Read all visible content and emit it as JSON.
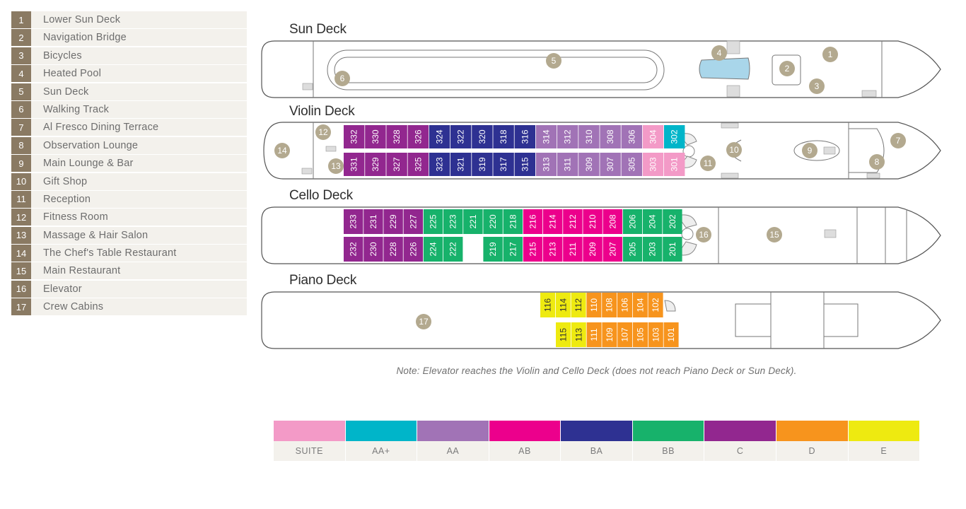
{
  "legend": [
    {
      "num": "1",
      "label": "Lower Sun Deck"
    },
    {
      "num": "2",
      "label": "Navigation Bridge"
    },
    {
      "num": "3",
      "label": "Bicycles"
    },
    {
      "num": "4",
      "label": "Heated Pool"
    },
    {
      "num": "5",
      "label": "Sun Deck"
    },
    {
      "num": "6",
      "label": "Walking Track"
    },
    {
      "num": "7",
      "label": "Al Fresco Dining Terrace"
    },
    {
      "num": "8",
      "label": "Observation Lounge"
    },
    {
      "num": "9",
      "label": "Main Lounge & Bar"
    },
    {
      "num": "10",
      "label": "Gift Shop"
    },
    {
      "num": "11",
      "label": "Reception"
    },
    {
      "num": "12",
      "label": "Fitness Room"
    },
    {
      "num": "13",
      "label": "Massage & Hair Salon"
    },
    {
      "num": "14",
      "label": "The Chef's Table Restaurant"
    },
    {
      "num": "15",
      "label": "Main Restaurant"
    },
    {
      "num": "16",
      "label": "Elevator"
    },
    {
      "num": "17",
      "label": "Crew Cabins"
    }
  ],
  "decks": {
    "sun": {
      "title": "Sun Deck"
    },
    "violin": {
      "title": "Violin Deck",
      "top": [
        {
          "n": "332",
          "c": "C"
        },
        {
          "n": "330",
          "c": "C"
        },
        {
          "n": "328",
          "c": "C"
        },
        {
          "n": "326",
          "c": "C"
        },
        {
          "n": "324",
          "c": "BA"
        },
        {
          "n": "322",
          "c": "BA"
        },
        {
          "n": "320",
          "c": "BA"
        },
        {
          "n": "318",
          "c": "BA"
        },
        {
          "n": "316",
          "c": "BA"
        },
        {
          "n": "314",
          "c": "AA"
        },
        {
          "n": "312",
          "c": "AA"
        },
        {
          "n": "310",
          "c": "AA"
        },
        {
          "n": "308",
          "c": "AA"
        },
        {
          "n": "306",
          "c": "AA"
        },
        {
          "n": "304",
          "c": "SUITE"
        },
        {
          "n": "302",
          "c": "AA+"
        }
      ],
      "bottom": [
        {
          "n": "331",
          "c": "C"
        },
        {
          "n": "329",
          "c": "C"
        },
        {
          "n": "327",
          "c": "C"
        },
        {
          "n": "325",
          "c": "C"
        },
        {
          "n": "323",
          "c": "BA"
        },
        {
          "n": "321",
          "c": "BA"
        },
        {
          "n": "319",
          "c": "BA"
        },
        {
          "n": "317",
          "c": "BA"
        },
        {
          "n": "315",
          "c": "BA"
        },
        {
          "n": "313",
          "c": "AA"
        },
        {
          "n": "311",
          "c": "AA"
        },
        {
          "n": "309",
          "c": "AA"
        },
        {
          "n": "307",
          "c": "AA"
        },
        {
          "n": "305",
          "c": "AA"
        },
        {
          "n": "303",
          "c": "SUITE"
        },
        {
          "n": "301",
          "c": "SUITE"
        }
      ]
    },
    "cello": {
      "title": "Cello Deck",
      "top": [
        {
          "n": "233",
          "c": "C"
        },
        {
          "n": "231",
          "c": "C"
        },
        {
          "n": "229",
          "c": "C"
        },
        {
          "n": "227",
          "c": "C"
        },
        {
          "n": "225",
          "c": "BB"
        },
        {
          "n": "223",
          "c": "BB"
        },
        {
          "n": "221",
          "c": "BB"
        },
        {
          "n": "220",
          "c": "BB"
        },
        {
          "n": "218",
          "c": "BB"
        },
        {
          "n": "216",
          "c": "AB"
        },
        {
          "n": "214",
          "c": "AB"
        },
        {
          "n": "212",
          "c": "AB"
        },
        {
          "n": "210",
          "c": "AB"
        },
        {
          "n": "208",
          "c": "AB"
        },
        {
          "n": "206",
          "c": "BB"
        },
        {
          "n": "204",
          "c": "BB"
        },
        {
          "n": "202",
          "c": "BB"
        }
      ],
      "bottom": [
        {
          "n": "232",
          "c": "C"
        },
        {
          "n": "230",
          "c": "C"
        },
        {
          "n": "228",
          "c": "C"
        },
        {
          "n": "226",
          "c": "C"
        },
        {
          "n": "224",
          "c": "BB"
        },
        {
          "n": "222",
          "c": "BB"
        },
        {
          "n": "",
          "c": "GAP"
        },
        {
          "n": "219",
          "c": "BB"
        },
        {
          "n": "217",
          "c": "BB"
        },
        {
          "n": "215",
          "c": "AB"
        },
        {
          "n": "213",
          "c": "AB"
        },
        {
          "n": "211",
          "c": "AB"
        },
        {
          "n": "209",
          "c": "AB"
        },
        {
          "n": "207",
          "c": "AB"
        },
        {
          "n": "205",
          "c": "BB"
        },
        {
          "n": "203",
          "c": "BB"
        },
        {
          "n": "201",
          "c": "BB"
        }
      ]
    },
    "piano": {
      "title": "Piano Deck",
      "top": [
        {
          "n": "116",
          "c": "E"
        },
        {
          "n": "114",
          "c": "E"
        },
        {
          "n": "112",
          "c": "E"
        },
        {
          "n": "110",
          "c": "D"
        },
        {
          "n": "108",
          "c": "D"
        },
        {
          "n": "106",
          "c": "D"
        },
        {
          "n": "104",
          "c": "D"
        },
        {
          "n": "102",
          "c": "D"
        }
      ],
      "bottom": [
        {
          "n": "115",
          "c": "E"
        },
        {
          "n": "113",
          "c": "E"
        },
        {
          "n": "111",
          "c": "D"
        },
        {
          "n": "109",
          "c": "D"
        },
        {
          "n": "107",
          "c": "D"
        },
        {
          "n": "105",
          "c": "D"
        },
        {
          "n": "103",
          "c": "D"
        },
        {
          "n": "101",
          "c": "D"
        }
      ]
    }
  },
  "markers": {
    "sun": [
      "1",
      "2",
      "3",
      "4",
      "5",
      "6"
    ],
    "violin": [
      "7",
      "8",
      "9",
      "10",
      "11",
      "12",
      "13",
      "14"
    ],
    "cello": [
      "15",
      "16"
    ],
    "piano": [
      "17"
    ]
  },
  "note": "Note: Elevator reaches the Violin and Cello Deck (does not reach Piano Deck or Sun Deck).",
  "categories": [
    {
      "label": "SUITE",
      "color": "#f39ac7"
    },
    {
      "label": "AA+",
      "color": "#00b5c9"
    },
    {
      "label": "AA",
      "color": "#a173b6"
    },
    {
      "label": "AB",
      "color": "#ec008c"
    },
    {
      "label": "BA",
      "color": "#2e3192"
    },
    {
      "label": "BB",
      "color": "#17b26b"
    },
    {
      "label": "C",
      "color": "#92278f"
    },
    {
      "label": "D",
      "color": "#f7941d"
    },
    {
      "label": "E",
      "color": "#eeea10"
    }
  ],
  "colors": {
    "marker": "#b3a98f",
    "legend_num": "#8a7a63",
    "hull_stroke": "#555555",
    "pool": "#a9d6ea"
  }
}
